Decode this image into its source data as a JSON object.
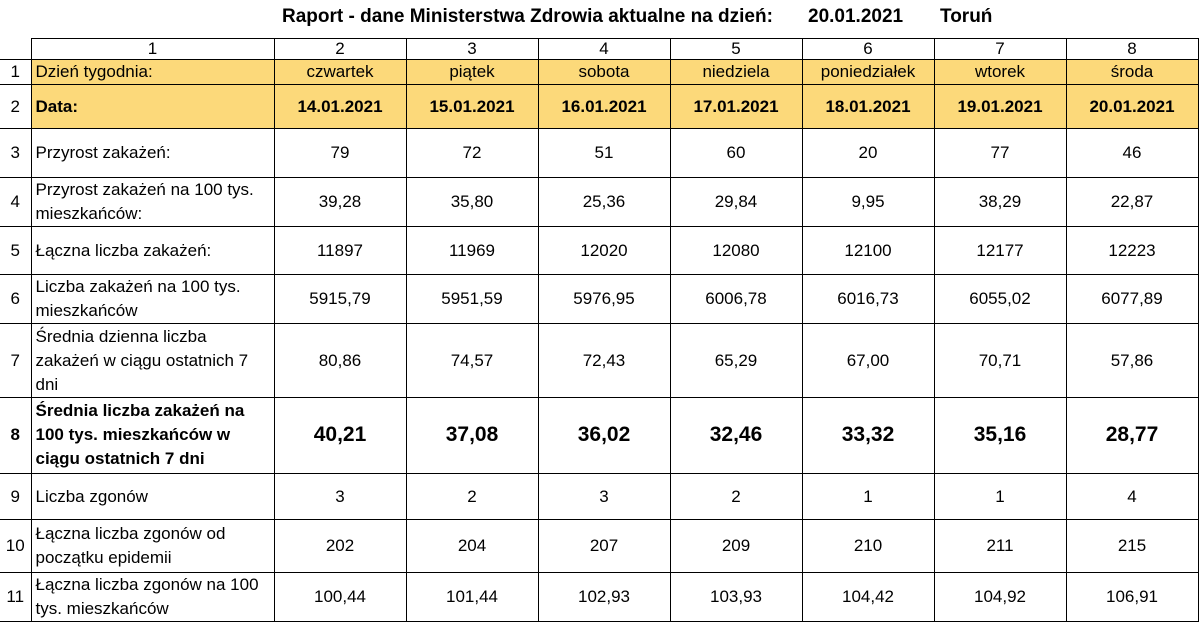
{
  "title": {
    "main": "Raport - dane Ministerstwa Zdrowia aktualne na dzień:",
    "date": "20.01.2021",
    "city": "Toruń"
  },
  "column_numbers": [
    "1",
    "2",
    "3",
    "4",
    "5",
    "6",
    "7",
    "8"
  ],
  "rows": [
    {
      "idx": "1",
      "label": "Dzień tygodnia:",
      "values": [
        "czwartek",
        "piątek",
        "sobota",
        "niedziela",
        "poniedziałek",
        "wtorek",
        "środa"
      ]
    },
    {
      "idx": "2",
      "label": "Data:",
      "values": [
        "14.01.2021",
        "15.01.2021",
        "16.01.2021",
        "17.01.2021",
        "18.01.2021",
        "19.01.2021",
        "20.01.2021"
      ]
    },
    {
      "idx": "3",
      "label": "Przyrost zakażeń:",
      "values": [
        "79",
        "72",
        "51",
        "60",
        "20",
        "77",
        "46"
      ]
    },
    {
      "idx": "4",
      "label": "Przyrost zakażeń na 100 tys. mieszkańców:",
      "values": [
        "39,28",
        "35,80",
        "25,36",
        "29,84",
        "9,95",
        "38,29",
        "22,87"
      ]
    },
    {
      "idx": "5",
      "label": "Łączna liczba zakażeń:",
      "values": [
        "11897",
        "11969",
        "12020",
        "12080",
        "12100",
        "12177",
        "12223"
      ]
    },
    {
      "idx": "6",
      "label": "Liczba zakażeń na 100 tys. mieszkańców",
      "values": [
        "5915,79",
        "5951,59",
        "5976,95",
        "6006,78",
        "6016,73",
        "6055,02",
        "6077,89"
      ]
    },
    {
      "idx": "7",
      "label": "Średnia dzienna liczba zakażeń w ciągu ostatnich 7 dni",
      "values": [
        "80,86",
        "74,57",
        "72,43",
        "65,29",
        "67,00",
        "70,71",
        "57,86"
      ]
    },
    {
      "idx": "8",
      "label": "Średnia liczba zakażeń na 100 tys. mieszkańców w ciągu ostatnich 7 dni",
      "values": [
        "40,21",
        "37,08",
        "36,02",
        "32,46",
        "33,32",
        "35,16",
        "28,77"
      ]
    },
    {
      "idx": "9",
      "label": "Liczba zgonów",
      "values": [
        "3",
        "2",
        "3",
        "2",
        "1",
        "1",
        "4"
      ]
    },
    {
      "idx": "10",
      "label": "Łączna liczba zgonów od początku epidemii",
      "values": [
        "202",
        "204",
        "207",
        "209",
        "210",
        "211",
        "215"
      ]
    },
    {
      "idx": "11",
      "label": "Łączna liczba zgonów na 100 tys. mieszkańców",
      "values": [
        "100,44",
        "101,44",
        "102,93",
        "103,93",
        "104,42",
        "104,92",
        "106,91"
      ]
    }
  ],
  "colors": {
    "header_fill": "#fcd97a",
    "border": "#000000"
  }
}
